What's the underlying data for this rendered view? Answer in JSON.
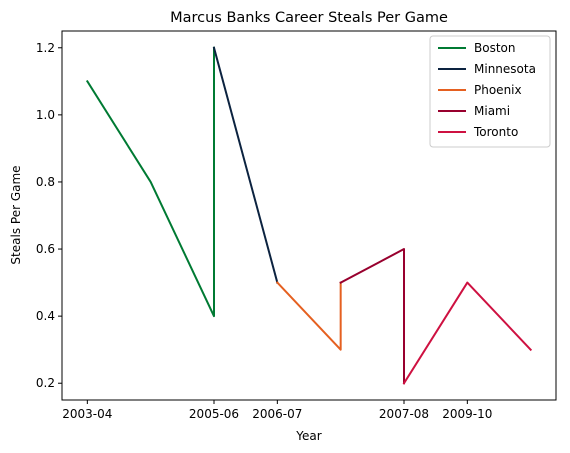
{
  "chart_data": {
    "type": "line",
    "title": "Marcus Banks Career Steals Per Game",
    "xlabel": "Year",
    "ylabel": "Steals Per Game",
    "x_ticks": [
      "2003-04",
      "2005-06",
      "2006-07",
      "2007-08",
      "2009-10"
    ],
    "x_tick_positions": [
      0,
      2,
      3,
      5,
      6
    ],
    "x_range": [
      -0.4,
      7.4
    ],
    "ylim": [
      0.15,
      1.25
    ],
    "y_ticks": [
      0.2,
      0.4,
      0.6,
      0.8,
      1.0,
      1.2
    ],
    "grid": false,
    "legend_position": "top-right",
    "series": [
      {
        "name": "Boston",
        "color": "#007A33",
        "x": [
          0,
          1,
          2,
          2
        ],
        "y": [
          1.1,
          0.8,
          0.4,
          1.2
        ]
      },
      {
        "name": "Minnesota",
        "color": "#0C2340",
        "x": [
          2,
          3
        ],
        "y": [
          1.2,
          0.5
        ]
      },
      {
        "name": "Phoenix",
        "color": "#E56020",
        "x": [
          3,
          4,
          4
        ],
        "y": [
          0.5,
          0.3,
          0.5
        ]
      },
      {
        "name": "Miami",
        "color": "#98002E",
        "x": [
          4,
          5,
          5
        ],
        "y": [
          0.5,
          0.6,
          0.2
        ]
      },
      {
        "name": "Toronto",
        "color": "#CE1141",
        "x": [
          5,
          6,
          7
        ],
        "y": [
          0.2,
          0.5,
          0.3
        ]
      }
    ]
  }
}
